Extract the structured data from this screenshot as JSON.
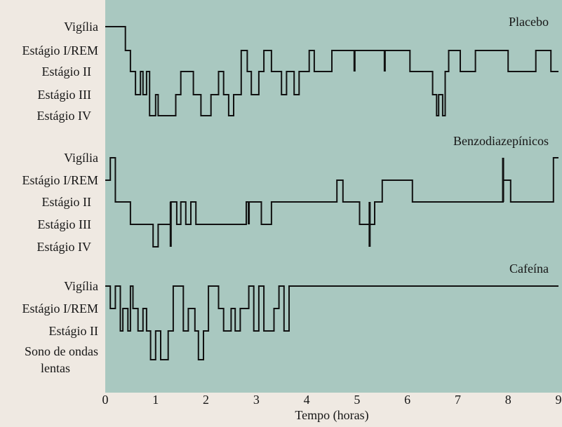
{
  "chart_data": [
    {
      "type": "line",
      "step": true,
      "panel_label": "Placebo",
      "levels": [
        "Vigília",
        "Estágio I/REM",
        "Estágio II",
        "Estágio III",
        "Estágio IV"
      ],
      "x": [
        0,
        0.4,
        0.4,
        0.5,
        0.5,
        0.6,
        0.6,
        0.7,
        0.7,
        0.75,
        0.75,
        0.82,
        0.82,
        0.88,
        0.88,
        1.0,
        1.0,
        1.05,
        1.05,
        1.4,
        1.4,
        1.5,
        1.5,
        1.75,
        1.75,
        1.9,
        1.9,
        2.1,
        2.1,
        2.25,
        2.25,
        2.35,
        2.35,
        2.45,
        2.45,
        2.55,
        2.55,
        2.7,
        2.7,
        2.82,
        2.82,
        2.9,
        2.9,
        3.05,
        3.05,
        3.15,
        3.15,
        3.3,
        3.3,
        3.38,
        3.38,
        3.5,
        3.5,
        3.6,
        3.6,
        3.75,
        3.75,
        3.85,
        3.85,
        4.05,
        4.05,
        4.15,
        4.15,
        4.5,
        4.5,
        5.3,
        5.3,
        5.55,
        5.55,
        6.05,
        6.05,
        6.5,
        6.5,
        6.58,
        6.58,
        6.62,
        6.62,
        6.7,
        6.7,
        6.75,
        6.75,
        6.82,
        6.82,
        7.05,
        7.05,
        7.35,
        7.35,
        8.0,
        8.0,
        8.55,
        8.55,
        8.85,
        8.85,
        9.0
      ],
      "y": [
        "Vigília",
        "Vigília",
        "Estágio I/REM",
        "Estágio I/REM",
        "Estágio II",
        "Estágio II",
        "Estágio III",
        "Estágio III",
        "Estágio II",
        "Estágio II",
        "Estágio III",
        "Estágio III",
        "Estágio II",
        "Estágio II",
        "Estágio IV",
        "Estágio IV",
        "Estágio III",
        "Estágio III",
        "Estágio IV",
        "Estágio IV",
        "Estágio III",
        "Estágio III",
        "Estágio II",
        "Estágio II",
        "Estágio III",
        "Estágio III",
        "Estágio IV",
        "Estágio IV",
        "Estágio III",
        "Estágio III",
        "Estágio II",
        "Estágio II",
        "Estágio III",
        "Estágio III",
        "Estágio IV",
        "Estágio IV",
        "Estágio III",
        "Estágio III",
        "Estágio I/REM",
        "Estágio I/REM",
        "Estágio II",
        "Estágio II",
        "Estágio III",
        "Estágio III",
        "Estágio II",
        "Estágio II",
        "Estágio I/REM",
        "Estágio I/REM",
        "Estágio II",
        "Estágio II",
        "Estágio II",
        "Estágio II",
        "Estágio III",
        "Estágio III",
        "Estágio II",
        "Estágio II",
        "Estágio III",
        "Estágio III",
        "Estágio II",
        "Estágio II",
        "Estágio I/REM",
        "Estágio I/REM",
        "Estágio II",
        "Estágio II",
        "Estágio I/REM",
        "Estágio I/REM",
        "Estágio I/REM",
        "Estágio I/REM",
        "Estágio I/REM",
        "Estágio I/REM",
        "Estágio II",
        "Estágio II",
        "Estágio III",
        "Estágio III",
        "Estágio IV",
        "Estágio IV",
        "Estágio III",
        "Estágio III",
        "Estágio IV",
        "Estágio IV",
        "Estágio II",
        "Estágio II",
        "Estágio I/REM",
        "Estágio I/REM",
        "Estágio II",
        "Estágio II",
        "Estágio I/REM",
        "Estágio I/REM",
        "Estágio II",
        "Estágio II",
        "Estágio I/REM",
        "Estágio I/REM",
        "Estágio II",
        "Estágio II"
      ],
      "spikes": [
        {
          "x": 4.95,
          "from": "Estágio I/REM",
          "to": "Estágio II"
        },
        {
          "x": 5.55,
          "from": "Estágio I/REM",
          "to": "Estágio II"
        }
      ]
    },
    {
      "type": "line",
      "step": true,
      "panel_label": "Benzodiazepínicos",
      "levels": [
        "Vigília",
        "Estágio I/REM",
        "Estágio II",
        "Estágio III",
        "Estágio IV"
      ],
      "x": [
        0,
        0.1,
        0.1,
        0.2,
        0.2,
        0.5,
        0.5,
        0.95,
        0.95,
        1.05,
        1.05,
        1.3,
        1.3,
        1.42,
        1.42,
        1.5,
        1.5,
        1.6,
        1.6,
        1.7,
        1.7,
        1.8,
        1.8,
        1.95,
        1.95,
        2.2,
        2.2,
        2.8,
        2.8,
        3.1,
        3.1,
        3.3,
        3.3,
        4.6,
        4.6,
        4.72,
        4.72,
        5.05,
        5.05,
        5.25,
        5.25,
        5.35,
        5.35,
        5.5,
        5.5,
        6.1,
        6.1,
        7.9,
        7.9,
        8.05,
        8.05,
        8.9,
        8.9,
        9.0
      ],
      "y": [
        "Estágio I/REM",
        "Estágio I/REM",
        "Vigília",
        "Vigília",
        "Estágio II",
        "Estágio II",
        "Estágio III",
        "Estágio III",
        "Estágio IV",
        "Estágio IV",
        "Estágio III",
        "Estágio III",
        "Estágio II",
        "Estágio II",
        "Estágio III",
        "Estágio III",
        "Estágio II",
        "Estágio II",
        "Estágio III",
        "Estágio III",
        "Estágio II",
        "Estágio II",
        "Estágio III",
        "Estágio III",
        "Estágio III",
        "Estágio III",
        "Estágio III",
        "Estágio III",
        "Estágio II",
        "Estágio II",
        "Estágio III",
        "Estágio III",
        "Estágio II",
        "Estágio II",
        "Estágio I/REM",
        "Estágio I/REM",
        "Estágio II",
        "Estágio II",
        "Estágio III",
        "Estágio III",
        "Estágio III",
        "Estágio III",
        "Estágio II",
        "Estágio II",
        "Estágio I/REM",
        "Estágio I/REM",
        "Estágio II",
        "Estágio II",
        "Estágio I/REM",
        "Estágio I/REM",
        "Estágio II",
        "Estágio II",
        "Vigília",
        "Vigília"
      ],
      "spikes": [
        {
          "x": 1.3,
          "from": "Estágio II",
          "to": "Estágio IV"
        },
        {
          "x": 2.85,
          "from": "Estágio II",
          "to": "Estágio III"
        },
        {
          "x": 5.25,
          "from": "Estágio II",
          "to": "Estágio IV"
        },
        {
          "x": 7.9,
          "from": "Vigília",
          "to": "Estágio II"
        }
      ]
    },
    {
      "type": "line",
      "step": true,
      "panel_label": "Cafeína",
      "levels": [
        "Vigília",
        "Estágio I/REM",
        "Estágio II",
        "Sono de ondas lentas"
      ],
      "x": [
        0,
        0.1,
        0.1,
        0.2,
        0.2,
        0.3,
        0.3,
        0.35,
        0.35,
        0.45,
        0.45,
        0.5,
        0.5,
        0.55,
        0.55,
        0.65,
        0.65,
        0.75,
        0.75,
        0.82,
        0.82,
        0.9,
        0.9,
        1.0,
        1.0,
        1.1,
        1.1,
        1.25,
        1.25,
        1.35,
        1.35,
        1.55,
        1.55,
        1.65,
        1.65,
        1.78,
        1.78,
        1.85,
        1.85,
        1.95,
        1.95,
        2.05,
        2.05,
        2.25,
        2.25,
        2.35,
        2.35,
        2.5,
        2.5,
        2.58,
        2.58,
        2.68,
        2.68,
        2.85,
        2.85,
        2.95,
        2.95,
        3.05,
        3.05,
        3.15,
        3.15,
        3.25,
        3.25,
        3.35,
        3.35,
        3.45,
        3.45,
        3.55,
        3.55,
        3.65,
        3.65,
        9.0
      ],
      "y": [
        "Vigília",
        "Vigília",
        "Estágio I/REM",
        "Estágio I/REM",
        "Vigília",
        "Vigília",
        "Estágio II",
        "Estágio II",
        "Estágio I/REM",
        "Estágio I/REM",
        "Estágio II",
        "Estágio II",
        "Vigília",
        "Vigília",
        "Estágio I/REM",
        "Estágio I/REM",
        "Estágio II",
        "Estágio II",
        "Estágio I/REM",
        "Estágio I/REM",
        "Estágio II",
        "Estágio II",
        "Sono de ondas lentas",
        "Sono de ondas lentas",
        "Estágio II",
        "Estágio II",
        "Sono de ondas lentas",
        "Sono de ondas lentas",
        "Estágio II",
        "Estágio II",
        "Vigília",
        "Vigília",
        "Estágio II",
        "Estágio II",
        "Estágio I/REM",
        "Estágio I/REM",
        "Estágio II",
        "Estágio II",
        "Sono de ondas lentas",
        "Sono de ondas lentas",
        "Estágio II",
        "Estágio II",
        "Vigília",
        "Vigília",
        "Estágio I/REM",
        "Estágio I/REM",
        "Estágio II",
        "Estágio II",
        "Estágio I/REM",
        "Estágio I/REM",
        "Estágio II",
        "Estágio II",
        "Estágio I/REM",
        "Estágio I/REM",
        "Vigília",
        "Vigília",
        "Estágio II",
        "Estágio II",
        "Vigília",
        "Vigília",
        "Estágio II",
        "Estágio II",
        "Estágio II",
        "Estágio II",
        "Estágio I/REM",
        "Estágio I/REM",
        "Vigília",
        "Vigília",
        "Estágio II",
        "Estágio II",
        "Vigília",
        "Vigília"
      ],
      "spikes": []
    }
  ],
  "x_axis": {
    "label": "Tempo (horas)",
    "range": [
      0,
      9
    ],
    "ticks": [
      "0",
      "1",
      "2",
      "3",
      "4",
      "5",
      "6",
      "7",
      "8",
      "9"
    ]
  },
  "colors": {
    "panel_fill": "#a9c8c0",
    "trace": "#111111",
    "page": "#efe9e2",
    "text": "#161616"
  }
}
